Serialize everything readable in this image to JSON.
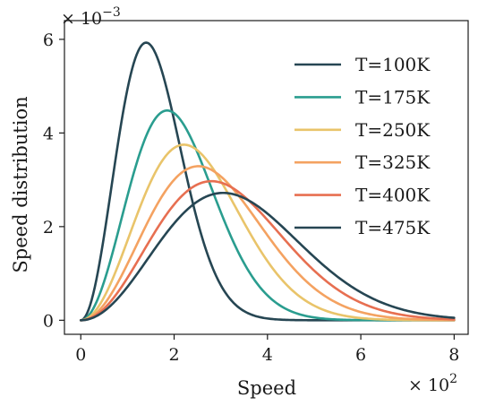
{
  "chart_data": {
    "type": "line",
    "title": "",
    "xlabel": "Speed",
    "ylabel": "Speed distribution",
    "x_multiplier_label": "× 10",
    "x_multiplier_exp": "2",
    "y_multiplier_label": "× 10",
    "y_multiplier_exp": "−3",
    "xlim": [
      -0.35,
      8.3
    ],
    "ylim": [
      -0.3,
      6.4
    ],
    "xticks": [
      0,
      2,
      4,
      6,
      8
    ],
    "yticks": [
      0,
      2,
      4,
      6
    ],
    "xtick_labels": [
      "0",
      "2",
      "4",
      "6",
      "8"
    ],
    "ytick_labels": [
      "0",
      "2",
      "4",
      "6"
    ],
    "grid": false,
    "legend_position": "top-right",
    "x_range": [
      0,
      8
    ],
    "series": [
      {
        "name": "T=100K",
        "T": 100,
        "color": "#264653"
      },
      {
        "name": "T=175K",
        "T": 175,
        "color": "#2a9d8f"
      },
      {
        "name": "T=250K",
        "T": 250,
        "color": "#e9c46a"
      },
      {
        "name": "T=325K",
        "T": 325,
        "color": "#f4a261"
      },
      {
        "name": "T=400K",
        "T": 400,
        "color": "#e76f51"
      },
      {
        "name": "T=475K",
        "T": 475,
        "color": "#264653"
      }
    ],
    "peaks": [
      {
        "name": "T=100K",
        "x": 1.4,
        "y": 5.93
      },
      {
        "name": "T=175K",
        "x": 1.85,
        "y": 4.48
      },
      {
        "name": "T=250K",
        "x": 2.21,
        "y": 3.75
      },
      {
        "name": "T=325K",
        "x": 2.52,
        "y": 3.29
      },
      {
        "name": "T=400K",
        "x": 2.8,
        "y": 2.97
      },
      {
        "name": "T=475K",
        "x": 3.05,
        "y": 2.72
      }
    ]
  }
}
